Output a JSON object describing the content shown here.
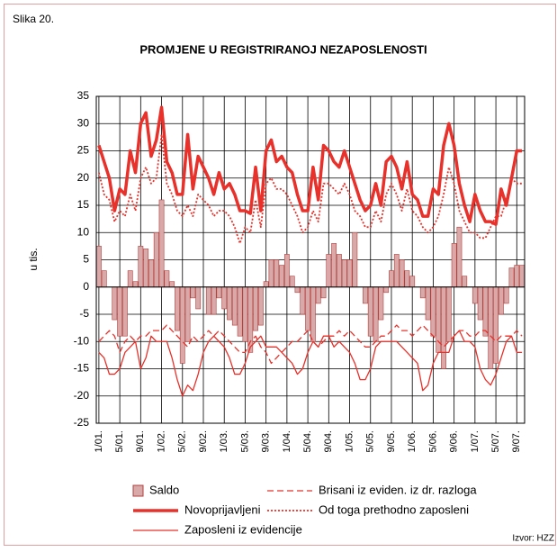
{
  "chart_data": {
    "type": "bar",
    "figure_label": "Slika 20.",
    "title": "PROMJENE U REGISTRIRANOJ NEZAPOSLENOSTI",
    "ylabel": "u tis.",
    "source": "Izvor: HZZ",
    "ylim": [
      -25,
      35
    ],
    "yticks": [
      -25,
      -20,
      -15,
      -10,
      -5,
      0,
      5,
      10,
      15,
      20,
      25,
      30,
      35
    ],
    "grid": true,
    "categories": [
      "1/01.",
      null,
      null,
      null,
      "5/01.",
      null,
      null,
      null,
      "9/01.",
      null,
      null,
      null,
      "1/02.",
      null,
      null,
      null,
      "5/02.",
      null,
      null,
      null,
      "9/02.",
      null,
      null,
      null,
      "1/03.",
      null,
      null,
      null,
      "5/03.",
      null,
      null,
      null,
      "9/03.",
      null,
      null,
      null,
      "1/04.",
      null,
      null,
      null,
      "5/04.",
      null,
      null,
      null,
      "9/04.",
      null,
      null,
      null,
      "1/05.",
      null,
      null,
      null,
      "5/05.",
      null,
      null,
      null,
      "9/05.",
      null,
      null,
      null,
      "1/06.",
      null,
      null,
      null,
      "5/06.",
      null,
      null,
      null,
      "9/06.",
      null,
      null,
      null,
      "1/07.",
      null,
      null,
      null,
      "5/07.",
      null,
      null,
      null,
      "9/07.",
      null
    ],
    "series": [
      {
        "name": "Saldo",
        "kind": "bar",
        "color": "#d9a8a8",
        "stroke": "#b0403c",
        "values": [
          7.5,
          3,
          0,
          -6,
          -9,
          -9,
          3,
          1,
          7.5,
          7,
          5,
          10,
          16,
          3,
          1,
          -8,
          -14,
          -10,
          -2,
          -4,
          0,
          -5,
          -5,
          -2,
          -4,
          -6,
          -7,
          -9,
          -10,
          -12,
          -8,
          -7,
          1,
          5,
          5,
          4,
          6,
          2,
          -1,
          -5,
          -8,
          -10,
          -3,
          -2,
          6,
          8,
          6,
          5,
          5,
          10,
          0,
          -3,
          -9,
          -10,
          -6,
          -1,
          3,
          6,
          5,
          3,
          2,
          0,
          -2,
          -6,
          -9,
          -12,
          -15,
          -10,
          8,
          11,
          2,
          0,
          -3,
          -6,
          -9,
          -15,
          -14,
          -5,
          -3,
          3.5,
          4,
          4
        ]
      },
      {
        "name": "Novoprijavljeni",
        "kind": "line",
        "dash": "solid",
        "width": 3.5,
        "color": "#e8312a",
        "values": [
          26,
          23,
          20,
          14,
          18,
          17,
          25,
          21,
          30,
          32,
          24,
          27,
          33,
          23,
          21,
          17,
          17,
          28,
          18,
          24,
          22,
          20,
          17,
          21,
          18,
          19,
          17,
          14,
          14,
          13.5,
          22,
          14,
          25,
          27,
          23,
          24,
          22,
          21,
          17,
          14,
          14,
          22,
          16,
          26,
          25,
          23,
          22,
          25,
          22,
          19,
          16,
          14,
          15,
          19,
          15,
          23,
          24,
          22,
          18,
          23,
          17,
          16,
          13,
          13,
          18,
          17,
          26,
          30,
          26,
          19,
          15,
          12,
          17,
          14,
          12,
          12,
          11.5,
          18,
          15,
          20,
          25,
          25
        ]
      },
      {
        "name": "Od toga prethodno zaposleni",
        "kind": "line",
        "dash": "dotted",
        "width": 1.8,
        "color": "#e8312a",
        "values": [
          21,
          17,
          16,
          12,
          14,
          13,
          17,
          14,
          20,
          22,
          19,
          20,
          28,
          19,
          17,
          14,
          13,
          15,
          13,
          17,
          16,
          15,
          13,
          14,
          14,
          13,
          11,
          8,
          11,
          10,
          16,
          11,
          19,
          20,
          18,
          18,
          17,
          15,
          13,
          10,
          11,
          14,
          12,
          19,
          19,
          18,
          17,
          19,
          17,
          14,
          13,
          11,
          11,
          14,
          12,
          17,
          19,
          17,
          14,
          18,
          14,
          13,
          11,
          10,
          11,
          13,
          17,
          22,
          19,
          14,
          12,
          10,
          10,
          9,
          9,
          11,
          13,
          13,
          16,
          20,
          19,
          19
        ]
      },
      {
        "name": "Zaposleni iz evidencije",
        "kind": "line",
        "dash": "solid",
        "width": 1.3,
        "color": "#e8312a",
        "values": [
          -12,
          -13,
          -16,
          -16,
          -15,
          -12,
          -11,
          -10,
          -15,
          -13,
          -9,
          -10,
          -10,
          -10,
          -13,
          -17,
          -20,
          -18,
          -19,
          -16,
          -12,
          -10,
          -9,
          -10,
          -11,
          -13,
          -16,
          -16,
          -14,
          -11,
          -10,
          -9,
          -11,
          -11,
          -11,
          -12,
          -13,
          -14,
          -16,
          -15,
          -12,
          -10,
          -11,
          -9,
          -9,
          -11,
          -10,
          -11,
          -12,
          -14,
          -17,
          -17,
          -15,
          -11,
          -10,
          -10,
          -10,
          -10,
          -11,
          -12,
          -13,
          -14,
          -19,
          -18,
          -14,
          -12,
          -12,
          -12,
          -9,
          -8,
          -10,
          -10,
          -11,
          -15,
          -17,
          -18,
          -16,
          -13,
          -10,
          -9,
          -12,
          -12
        ]
      },
      {
        "name": "Brisani iz eviden. iz dr. razloga",
        "kind": "line",
        "dash": "dashed",
        "width": 1.3,
        "color": "#e8312a",
        "values": [
          -10,
          -9,
          -8,
          -9,
          -12,
          -10,
          -9,
          -10,
          -9,
          -9,
          -8,
          -8,
          -8,
          -7,
          -8,
          -9,
          -10,
          -11,
          -9,
          -10,
          -9,
          -8,
          -9,
          -8,
          -9,
          -10,
          -11,
          -12,
          -12,
          -10,
          -9,
          -11,
          -12,
          -14,
          -13,
          -12,
          -11,
          -10,
          -10,
          -9,
          -8,
          -10,
          -11,
          -10,
          -9,
          -9,
          -8,
          -9,
          -8,
          -9,
          -10,
          -11,
          -11,
          -10,
          -9,
          -9,
          -8,
          -7,
          -8,
          -8,
          -9,
          -8,
          -7,
          -8,
          -9,
          -10,
          -11,
          -10,
          -9,
          -8,
          -8,
          -9,
          -9,
          -8,
          -8,
          -9,
          -10,
          -9,
          -9,
          -9,
          -8,
          -9
        ]
      }
    ]
  }
}
